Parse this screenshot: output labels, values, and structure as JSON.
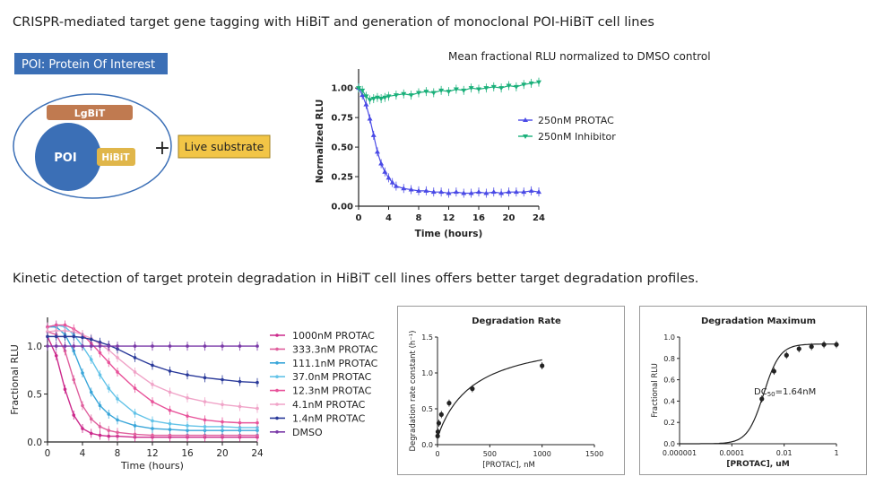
{
  "headings": {
    "top": "CRISPR-mediated target gene tagging with HiBiT and generation of monoclonal POI-HiBiT cell lines",
    "bottom": "Kinetic detection of target protein degradation in HiBiT cell lines offers better target degradation profiles."
  },
  "diagram": {
    "poi_banner": "POI: Protein Of Interest",
    "lgbit": "LgBiT",
    "poi": "POI",
    "hibit": "HiBiT",
    "plus": "+",
    "substrate": "Live substrate",
    "colors": {
      "banner": "#3b6fb6",
      "lgbit": "#c07a50",
      "hibit": "#e0b64a",
      "substrate": "#f2c546",
      "poi": "#3b6fb6"
    }
  },
  "chart_data": [
    {
      "id": "main",
      "type": "line",
      "title": "Mean fractional RLU normalized to DMSO control",
      "xlabel": "Time (hours)",
      "ylabel": "Normalized RLU",
      "xlim": [
        0,
        24
      ],
      "ylim": [
        0,
        1.1
      ],
      "xticks": [
        "0",
        "4",
        "8",
        "12",
        "16",
        "20",
        "24"
      ],
      "yticks": [
        "0.00",
        "0.25",
        "0.50",
        "0.75",
        "1.00"
      ],
      "legend_position": "right",
      "series": [
        {
          "name": "250nM PROTAC",
          "color": "#4a4ae6",
          "x": [
            0,
            0.5,
            1,
            1.5,
            2,
            2.5,
            3,
            3.5,
            4,
            4.5,
            5,
            6,
            7,
            8,
            9,
            10,
            11,
            12,
            13,
            14,
            15,
            16,
            17,
            18,
            19,
            20,
            21,
            22,
            23,
            24
          ],
          "y": [
            1.0,
            0.94,
            0.86,
            0.74,
            0.6,
            0.46,
            0.36,
            0.29,
            0.24,
            0.2,
            0.17,
            0.15,
            0.14,
            0.13,
            0.13,
            0.12,
            0.12,
            0.11,
            0.12,
            0.11,
            0.11,
            0.12,
            0.11,
            0.12,
            0.11,
            0.12,
            0.12,
            0.12,
            0.13,
            0.12
          ]
        },
        {
          "name": "250nM Inhibitor",
          "color": "#1ab07a",
          "x": [
            0,
            0.5,
            1,
            1.5,
            2,
            2.5,
            3,
            3.5,
            4,
            5,
            6,
            7,
            8,
            9,
            10,
            11,
            12,
            13,
            14,
            15,
            16,
            17,
            18,
            19,
            20,
            21,
            22,
            23,
            24
          ],
          "y": [
            1.0,
            0.98,
            0.93,
            0.9,
            0.91,
            0.92,
            0.91,
            0.92,
            0.93,
            0.94,
            0.95,
            0.94,
            0.96,
            0.97,
            0.96,
            0.98,
            0.97,
            0.99,
            0.98,
            1.0,
            0.99,
            1.0,
            1.01,
            1.0,
            1.02,
            1.01,
            1.03,
            1.04,
            1.05
          ]
        }
      ]
    },
    {
      "id": "kinetic",
      "type": "line",
      "title": "",
      "xlabel": "Time (hours)",
      "ylabel": "Fractional RLU",
      "xlim": [
        0,
        24
      ],
      "ylim": [
        0,
        1.3
      ],
      "xticks": [
        "0",
        "4",
        "8",
        "12",
        "16",
        "20",
        "24"
      ],
      "yticks": [
        "0.0",
        "0.5",
        "1.0"
      ],
      "legend_position": "right",
      "x": [
        0,
        1,
        2,
        3,
        4,
        5,
        6,
        7,
        8,
        10,
        12,
        14,
        16,
        18,
        20,
        22,
        24
      ],
      "series": [
        {
          "name": "1000nM PROTAC",
          "color": "#cc2a8c",
          "y": [
            1.1,
            0.9,
            0.55,
            0.28,
            0.14,
            0.09,
            0.07,
            0.06,
            0.06,
            0.05,
            0.05,
            0.05,
            0.05,
            0.05,
            0.05,
            0.05,
            0.05
          ]
        },
        {
          "name": "333.3nM PROTAC",
          "color": "#e0609e",
          "y": [
            1.15,
            1.12,
            0.95,
            0.65,
            0.38,
            0.24,
            0.16,
            0.12,
            0.1,
            0.08,
            0.07,
            0.07,
            0.07,
            0.07,
            0.07,
            0.07,
            0.07
          ]
        },
        {
          "name": "111.1nM PROTAC",
          "color": "#3aa6d9",
          "y": [
            1.2,
            1.2,
            1.12,
            0.95,
            0.72,
            0.52,
            0.38,
            0.29,
            0.23,
            0.17,
            0.14,
            0.13,
            0.12,
            0.12,
            0.12,
            0.12,
            0.12
          ]
        },
        {
          "name": "37.0nM PROTAC",
          "color": "#63c3e8",
          "y": [
            1.2,
            1.22,
            1.2,
            1.12,
            1.0,
            0.86,
            0.7,
            0.56,
            0.45,
            0.3,
            0.22,
            0.19,
            0.17,
            0.16,
            0.16,
            0.15,
            0.15
          ]
        },
        {
          "name": "12.3nM PROTAC",
          "color": "#e8539a",
          "y": [
            1.2,
            1.22,
            1.22,
            1.18,
            1.12,
            1.03,
            0.93,
            0.83,
            0.73,
            0.56,
            0.42,
            0.33,
            0.27,
            0.23,
            0.21,
            0.2,
            0.2
          ]
        },
        {
          "name": "4.1nM PROTAC",
          "color": "#f0a4c8",
          "y": [
            1.15,
            1.16,
            1.16,
            1.15,
            1.12,
            1.08,
            1.02,
            0.96,
            0.88,
            0.73,
            0.6,
            0.52,
            0.46,
            0.42,
            0.39,
            0.37,
            0.35
          ]
        },
        {
          "name": "1.4nM PROTAC",
          "color": "#2a3a9a",
          "y": [
            1.1,
            1.1,
            1.1,
            1.1,
            1.09,
            1.07,
            1.04,
            1.01,
            0.97,
            0.88,
            0.8,
            0.74,
            0.7,
            0.67,
            0.65,
            0.63,
            0.62
          ]
        },
        {
          "name": "DMSO",
          "color": "#7a3aa8",
          "y": [
            1.0,
            1.0,
            1.0,
            1.0,
            1.0,
            1.0,
            1.0,
            1.0,
            1.0,
            1.0,
            1.0,
            1.0,
            1.0,
            1.0,
            1.0,
            1.0,
            1.0
          ]
        }
      ]
    },
    {
      "id": "rate",
      "type": "scatter",
      "title": "Degradation Rate",
      "xlabel": "[PROTAC], nM",
      "ylabel": "Degradation rate constant (h⁻¹)",
      "xlim": [
        0,
        1500
      ],
      "ylim": [
        0,
        1.5
      ],
      "xticks": [
        "0",
        "500",
        "1000",
        "1500"
      ],
      "yticks": [
        "0.0",
        "0.5",
        "1.0",
        "1.5"
      ],
      "x": [
        1.4,
        4.1,
        12.3,
        37,
        111.1,
        333.3,
        1000
      ],
      "y": [
        0.12,
        0.18,
        0.3,
        0.42,
        0.58,
        0.78,
        1.1
      ]
    },
    {
      "id": "max",
      "type": "scatter",
      "title": "Degradation Maximum",
      "xlabel": "[PROTAC], uM",
      "ylabel": "Fractional RLU",
      "xscale": "log",
      "xlim": [
        1e-06,
        1
      ],
      "ylim": [
        0,
        1.0
      ],
      "xticks": [
        "0.000001",
        "0.0001",
        "0.01",
        "1"
      ],
      "yticks": [
        "0.0",
        "0.2",
        "0.4",
        "0.6",
        "0.8",
        "1.0"
      ],
      "annotation_prefix": "DC",
      "annotation_sub": "50",
      "annotation_value": "=1.64nM",
      "x": [
        0.0014,
        0.0041,
        0.0123,
        0.037,
        0.1111,
        0.3333,
        1.0
      ],
      "y": [
        0.42,
        0.68,
        0.83,
        0.89,
        0.91,
        0.93,
        0.93
      ]
    }
  ]
}
